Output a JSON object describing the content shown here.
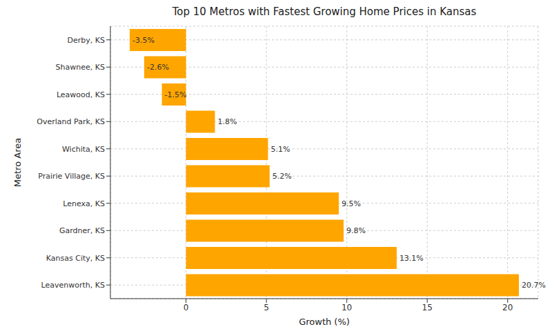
{
  "chart_data": {
    "type": "bar",
    "orientation": "horizontal",
    "title": "Top 10 Metros with Fastest Growing Home Prices in Kansas",
    "x_label": "Growth (%)",
    "y_label": "Metro Area",
    "categories": [
      "Derby, KS",
      "Shawnee, KS",
      "Leawood, KS",
      "Overland Park, KS",
      "Wichita, KS",
      "Prairie Village, KS",
      "Lenexa, KS",
      "Gardner, KS",
      "Kansas City, KS",
      "Leavenworth, KS"
    ],
    "values": [
      -3.5,
      -2.6,
      -1.5,
      1.8,
      5.1,
      5.2,
      9.5,
      9.8,
      13.1,
      20.7
    ],
    "value_labels": [
      "-3.5%",
      "-2.6%",
      "-1.5%",
      "1.8%",
      "5.1%",
      "5.2%",
      "9.5%",
      "9.8%",
      "13.1%",
      "20.7%"
    ],
    "data_labels": true,
    "color": "#ffa500",
    "xlim": [
      -4.7,
      21.9
    ],
    "xticks": [
      0,
      5,
      10,
      15,
      20
    ],
    "grid": true
  }
}
